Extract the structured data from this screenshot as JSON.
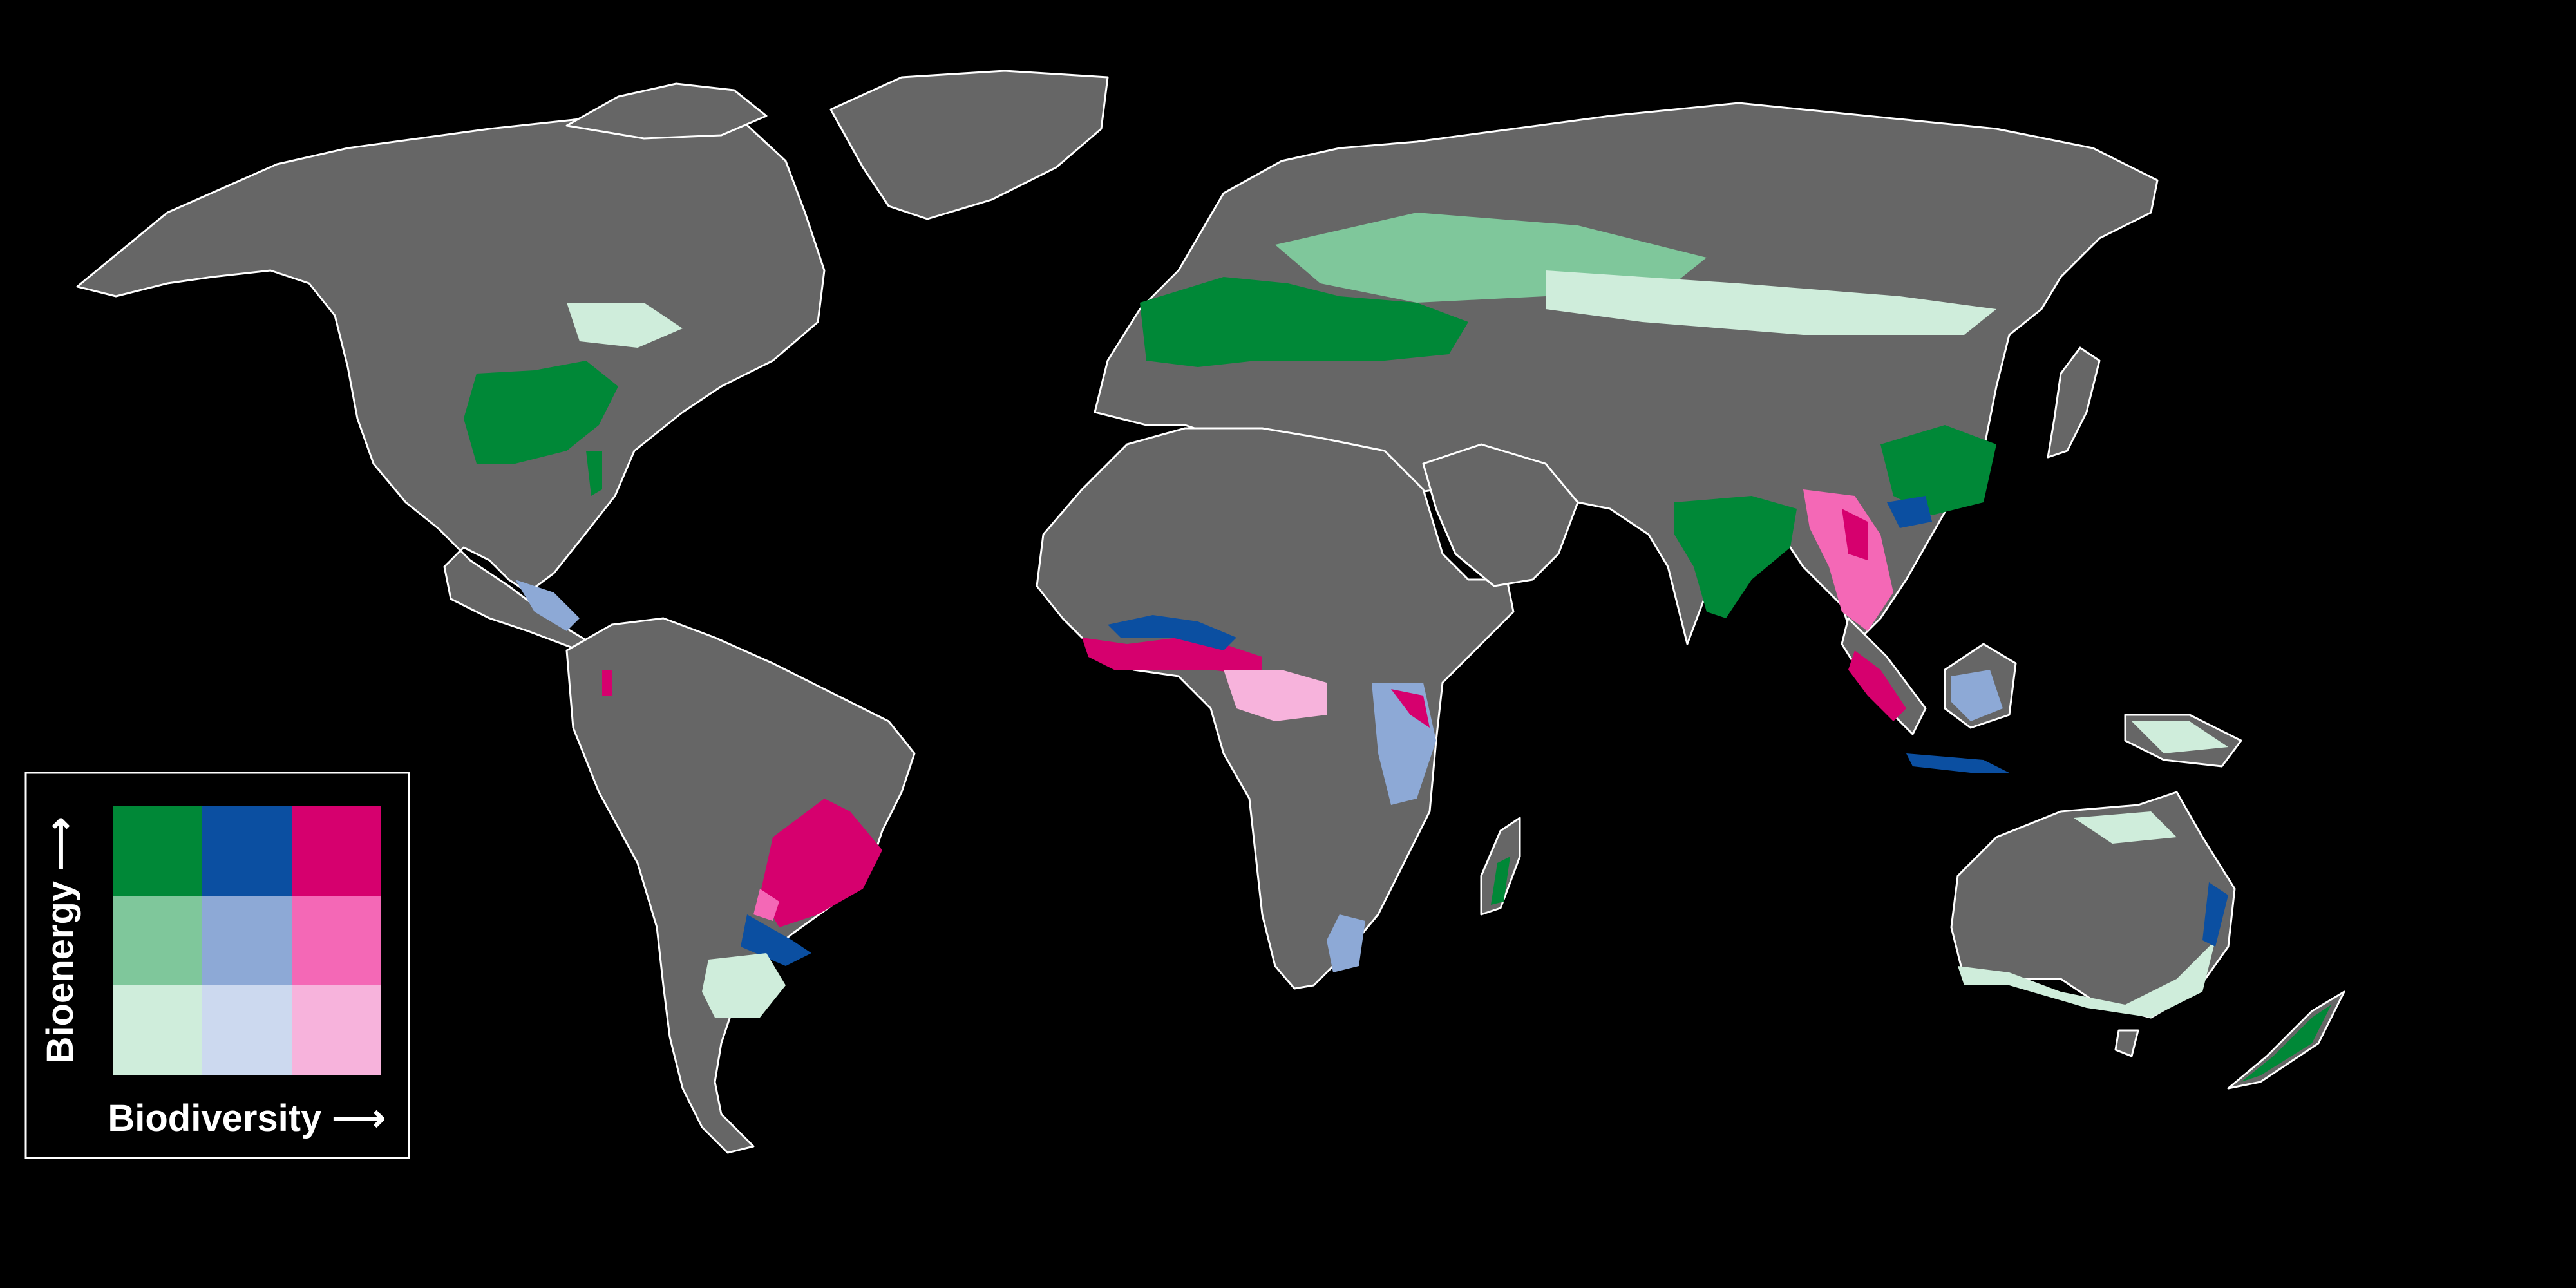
{
  "legend": {
    "y_label": "Bioenergy ⟶",
    "x_label": "Biodiversity ⟶",
    "cells": [
      [
        "#008837",
        "#0B4FA1",
        "#D6006E"
      ],
      [
        "#7FC79B",
        "#8DA9D6",
        "#F468B6"
      ],
      [
        "#CFEDDB",
        "#CCD9EF",
        "#F7B3DC"
      ]
    ]
  },
  "colors": {
    "background": "#000000",
    "land": "#666666",
    "border": "#FFFFFF"
  }
}
